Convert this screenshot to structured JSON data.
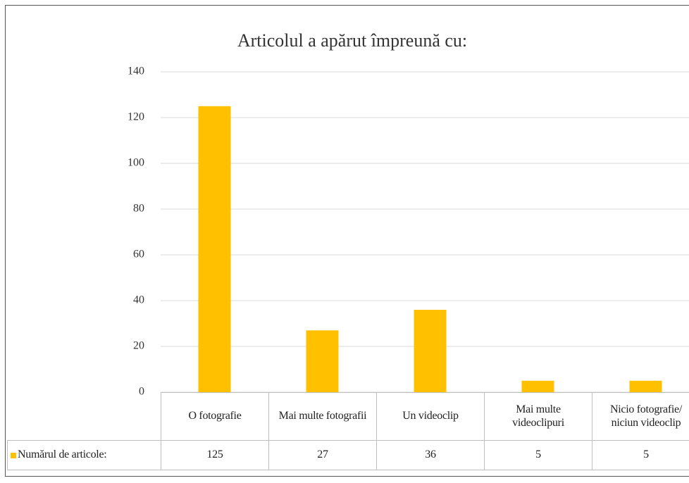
{
  "chart_data": {
    "type": "bar",
    "title": "Articolul a apărut împreună cu:",
    "categories": [
      "O fotografie",
      "Mai multe fotografii",
      "Un videoclip",
      "Mai multe videoclipuri",
      "Nicio fotografie/ niciun videoclip"
    ],
    "series": [
      {
        "name": "Numărul de articole:",
        "color": "#ffc000",
        "values": [
          125,
          27,
          36,
          5,
          5
        ]
      }
    ],
    "ylim": [
      0,
      140
    ],
    "yticks": [
      0,
      20,
      40,
      60,
      80,
      100,
      120,
      140
    ],
    "grid": true,
    "data_table": true
  }
}
